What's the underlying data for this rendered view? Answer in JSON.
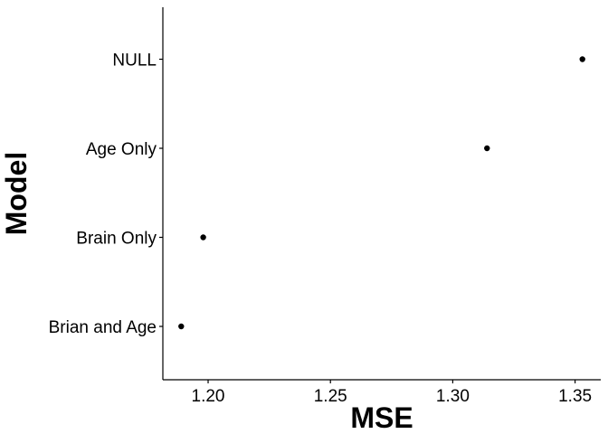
{
  "chart_data": {
    "type": "scatter",
    "xlabel": "MSE",
    "ylabel": "Model",
    "categories": [
      "Brian and Age",
      "Brain Only",
      "Age Only",
      "NULL"
    ],
    "values": [
      1.189,
      1.198,
      1.314,
      1.353
    ],
    "xlim": [
      1.1815,
      1.3605
    ],
    "x_ticks": [
      1.2,
      1.25,
      1.3,
      1.35
    ],
    "x_tick_labels": [
      "1.20",
      "1.25",
      "1.30",
      "1.35"
    ],
    "grid": false,
    "legend": "none",
    "colors": {
      "point": "#000000",
      "axis": "#000000",
      "background": "#ffffff"
    }
  }
}
